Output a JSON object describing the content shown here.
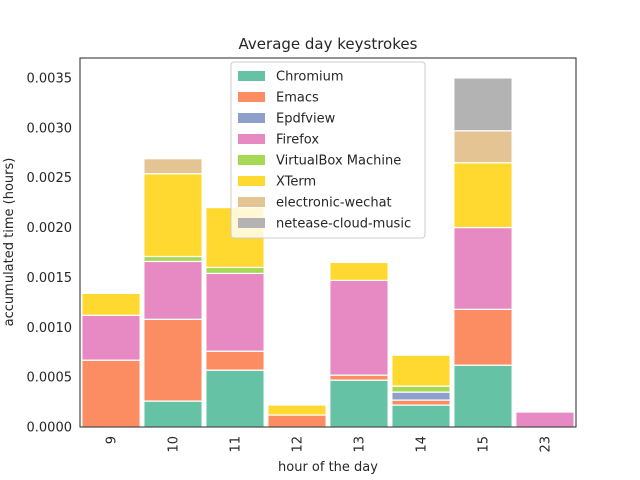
{
  "chart_data": {
    "type": "bar",
    "stacked": true,
    "title": "Average day keystrokes",
    "xlabel": "hour of the day",
    "ylabel": "accumulated time (hours)",
    "ylim": [
      0,
      0.0037
    ],
    "yticks": [
      "0.0000",
      "0.0005",
      "0.0010",
      "0.0015",
      "0.0020",
      "0.0025",
      "0.0030",
      "0.0035"
    ],
    "categories": [
      "9",
      "10",
      "11",
      "12",
      "13",
      "14",
      "15",
      "23"
    ],
    "grid": false,
    "legend_position": "top-center",
    "series": [
      {
        "name": "Chromium",
        "color": "#66c2a5",
        "values": [
          0,
          0.00026,
          0.00057,
          0,
          0.00047,
          0.00022,
          0.00062,
          0
        ]
      },
      {
        "name": "Emacs",
        "color": "#fc8d62",
        "values": [
          0.00067,
          0.00082,
          0.00019,
          0.00012,
          5e-05,
          5e-05,
          0.00056,
          0
        ]
      },
      {
        "name": "Epdfview",
        "color": "#8da0cb",
        "values": [
          0,
          0,
          0,
          0,
          0,
          8e-05,
          0,
          0
        ]
      },
      {
        "name": "Firefox",
        "color": "#e78ac3",
        "values": [
          0.00045,
          0.00058,
          0.00078,
          0,
          0.00095,
          0,
          0.00082,
          0.00015
        ]
      },
      {
        "name": "VirtualBox Machine",
        "color": "#a6d854",
        "values": [
          0,
          5e-05,
          6e-05,
          0,
          0,
          6e-05,
          0,
          0
        ]
      },
      {
        "name": "XTerm",
        "color": "#ffd92f",
        "values": [
          0.00022,
          0.00083,
          0.0006,
          0.0001,
          0.00018,
          0.00031,
          0.00065,
          0
        ]
      },
      {
        "name": "electronic-wechat",
        "color": "#e5c494",
        "values": [
          0,
          0.00015,
          0,
          0,
          0,
          0,
          0.00032,
          0
        ]
      },
      {
        "name": "netease-cloud-music",
        "color": "#b3b3b3",
        "values": [
          0,
          0,
          0,
          0,
          0,
          0,
          0.00053,
          0
        ]
      }
    ]
  }
}
